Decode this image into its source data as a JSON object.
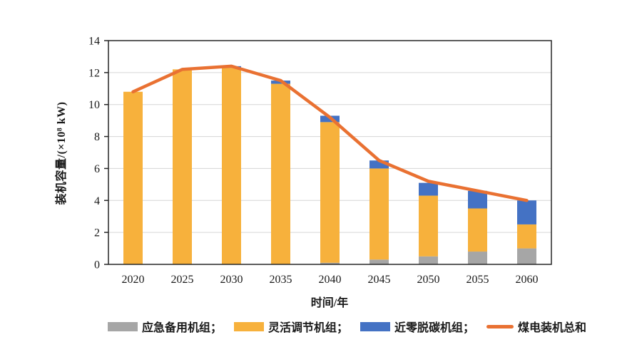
{
  "chart_data": {
    "type": "bar",
    "stacked": true,
    "title": "",
    "xlabel": "时间/年",
    "ylabel": "装机容量/(×10⁸ kW)",
    "categories": [
      "2020",
      "2025",
      "2030",
      "2035",
      "2040",
      "2045",
      "2050",
      "2055",
      "2060"
    ],
    "series": [
      {
        "name": "应急备用机组",
        "color": "#A6A6A6",
        "values": [
          0,
          0,
          0,
          0,
          0.1,
          0.3,
          0.5,
          0.8,
          1.0
        ]
      },
      {
        "name": "灵活调节机组",
        "color": "#F7B13C",
        "values": [
          10.8,
          12.2,
          12.3,
          11.3,
          8.8,
          5.7,
          3.8,
          2.7,
          1.5
        ]
      },
      {
        "name": "近零脱碳机组",
        "color": "#4472C4",
        "values": [
          0,
          0,
          0.1,
          0.2,
          0.4,
          0.5,
          0.8,
          1.1,
          1.5
        ]
      }
    ],
    "line_series": {
      "name": "煤电装机总和",
      "color": "#E97132",
      "values": [
        10.8,
        12.2,
        12.4,
        11.5,
        9.2,
        6.5,
        5.2,
        4.6,
        4.0
      ]
    },
    "ylim": [
      0,
      14
    ],
    "ytick_step": 2,
    "yticks": [
      0,
      2,
      4,
      6,
      8,
      10,
      12,
      14
    ],
    "grid": true,
    "legend_position": "bottom"
  },
  "legend": {
    "items": [
      {
        "label": "应急备用机组；",
        "type": "box",
        "color": "#A6A6A6"
      },
      {
        "label": "灵活调节机组；",
        "type": "box",
        "color": "#F7B13C"
      },
      {
        "label": "近零脱碳机组；",
        "type": "box",
        "color": "#4472C4"
      },
      {
        "label": "煤电装机总和",
        "type": "line",
        "color": "#E97132"
      }
    ]
  },
  "style": {
    "grid_color": "#D6D6D6",
    "border_color": "#262626",
    "text_color": "#1a1a1a"
  }
}
